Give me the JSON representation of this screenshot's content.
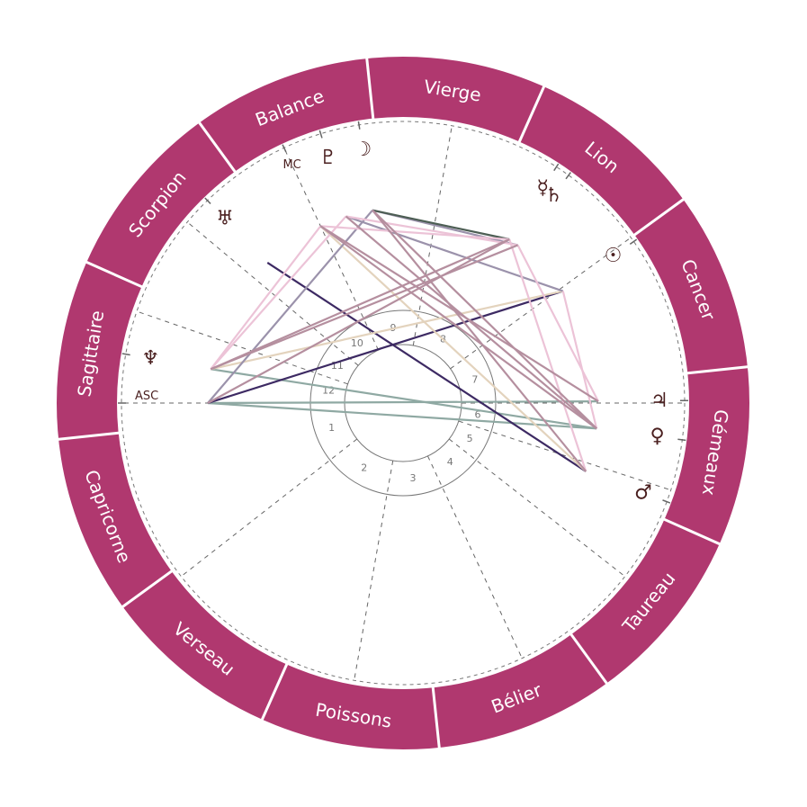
{
  "colors": {
    "ring": "#b0386f",
    "glyph": "#4a1f1f",
    "aspect": {
      "teal": "#8fa9a3",
      "dark-purple": "#3d2a63",
      "beige": "#e3d3bd",
      "grey-violet": "#9b92ab",
      "dark-green": "#4d5e54",
      "pink": "#ecc3d7",
      "mauve": "#b58f9f"
    }
  },
  "signs": [
    "Bélier",
    "Taureau",
    "Gémeaux",
    "Cancer",
    "Lion",
    "Vierge",
    "Balance",
    "Scorpion",
    "Sagittaire",
    "Capricorne",
    "Verseau",
    "Poissons"
  ],
  "houses": {
    "labels": [
      "1",
      "2",
      "3",
      "4",
      "5",
      "6",
      "7",
      "8",
      "9",
      "10",
      "11",
      "12"
    ],
    "cusps_longitude": [
      264,
      302,
      344,
      19,
      46,
      66,
      84,
      120,
      164,
      199,
      224,
      245
    ]
  },
  "points": [
    {
      "id": "asc",
      "label": "ASC",
      "glyph": "",
      "longitude": 264
    },
    {
      "id": "mc",
      "label": "MC",
      "glyph": "",
      "longitude": 199
    },
    {
      "id": "pluto",
      "glyph": "♇",
      "longitude": 191
    },
    {
      "id": "moon",
      "glyph": "☽",
      "longitude": 183
    },
    {
      "id": "uranus",
      "glyph": "♅",
      "longitude": 218
    },
    {
      "id": "neptune",
      "glyph": "♆",
      "longitude": 254
    },
    {
      "id": "mercury",
      "glyph": "☿",
      "longitude": 141
    },
    {
      "id": "saturn",
      "glyph": "♄",
      "longitude": 138
    },
    {
      "id": "sun",
      "glyph": "☉",
      "longitude": 119
    },
    {
      "id": "jupiter",
      "glyph": "♃",
      "longitude": 84.5
    },
    {
      "id": "venus",
      "glyph": "♀",
      "longitude": 76.5
    },
    {
      "id": "mars",
      "glyph": "♂",
      "longitude": 63.5
    }
  ],
  "aspects": [
    [
      "asc",
      "jupiter",
      "teal"
    ],
    [
      "asc",
      "venus",
      "teal"
    ],
    [
      "neptune",
      "venus",
      "teal"
    ],
    [
      "asc",
      "sun",
      "dark-purple"
    ],
    [
      "uranus",
      "mars",
      "dark-purple"
    ],
    [
      "neptune",
      "sun",
      "beige"
    ],
    [
      "mc",
      "mars",
      "beige"
    ],
    [
      "asc",
      "moon",
      "grey-violet"
    ],
    [
      "pluto",
      "sun",
      "grey-violet"
    ],
    [
      "moon",
      "saturn",
      "grey-violet"
    ],
    [
      "moon",
      "mercury",
      "dark-green"
    ],
    [
      "neptune",
      "mc",
      "pink"
    ],
    [
      "neptune",
      "pluto",
      "pink"
    ],
    [
      "mc",
      "mercury",
      "pink"
    ],
    [
      "pluto",
      "saturn",
      "pink"
    ],
    [
      "mercury",
      "mars",
      "pink"
    ],
    [
      "saturn",
      "jupiter",
      "pink"
    ],
    [
      "sun",
      "venus",
      "pink"
    ],
    [
      "asc",
      "mercury",
      "mauve"
    ],
    [
      "neptune",
      "saturn",
      "mauve"
    ],
    [
      "neptune",
      "mercury",
      "mauve"
    ],
    [
      "mc",
      "jupiter",
      "mauve"
    ],
    [
      "pluto",
      "venus",
      "mauve"
    ],
    [
      "moon",
      "venus",
      "mauve"
    ],
    [
      "moon",
      "mars",
      "mauve"
    ],
    [
      "mc",
      "venus",
      "mauve"
    ]
  ]
}
